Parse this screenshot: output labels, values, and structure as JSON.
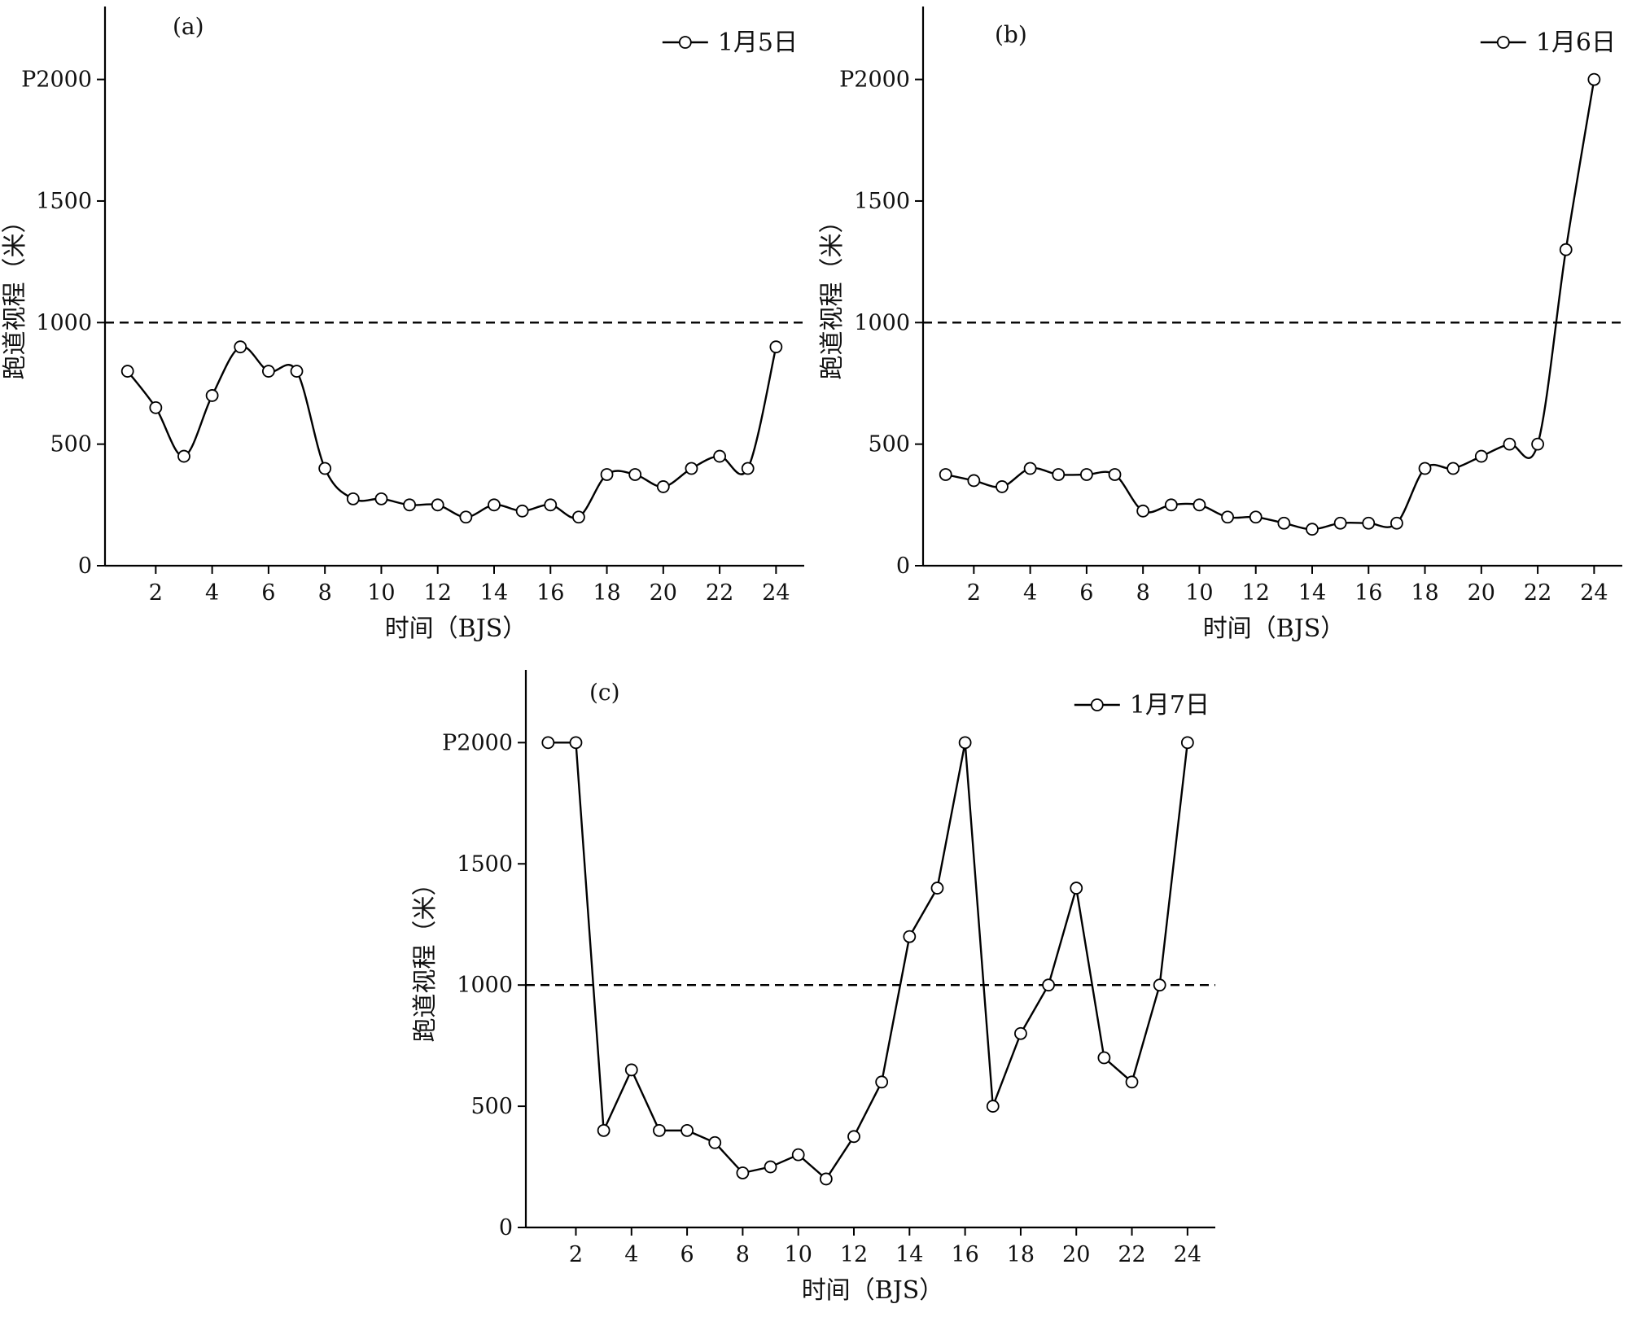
{
  "chart_data": [
    {
      "type": "line",
      "panel_label": "(a)",
      "legend": "1月5日",
      "xlabel": "时间（BJS）",
      "ylabel": "跑道视程（米）",
      "x_ticks": [
        2,
        4,
        6,
        8,
        10,
        12,
        14,
        16,
        18,
        20,
        22,
        24
      ],
      "y_ticks": [
        0,
        500,
        1000,
        1500,
        2000
      ],
      "y_tick_labels": [
        "0",
        "500",
        "1000",
        "1500",
        "P2000"
      ],
      "xlim": [
        0.2,
        25
      ],
      "ylim": [
        0,
        2300
      ],
      "reference_line": 1000,
      "smooth": true,
      "series": [
        {
          "name": "1月5日",
          "x": [
            1,
            2,
            3,
            4,
            5,
            6,
            7,
            8,
            9,
            10,
            11,
            12,
            13,
            14,
            15,
            16,
            17,
            18,
            19,
            20,
            21,
            22,
            23,
            24
          ],
          "values": [
            800,
            650,
            450,
            700,
            900,
            800,
            800,
            400,
            275,
            275,
            250,
            250,
            200,
            250,
            225,
            250,
            200,
            375,
            375,
            325,
            400,
            450,
            400,
            900
          ]
        }
      ]
    },
    {
      "type": "line",
      "panel_label": "(b)",
      "legend": "1月6日",
      "xlabel": "时间（BJS）",
      "ylabel": "跑道视程（米）",
      "x_ticks": [
        2,
        4,
        6,
        8,
        10,
        12,
        14,
        16,
        18,
        20,
        22,
        24
      ],
      "y_ticks": [
        0,
        500,
        1000,
        1500,
        2000
      ],
      "y_tick_labels": [
        "0",
        "500",
        "1000",
        "1500",
        "P2000"
      ],
      "xlim": [
        0.2,
        25
      ],
      "ylim": [
        0,
        2300
      ],
      "reference_line": 1000,
      "smooth": true,
      "series": [
        {
          "name": "1月6日",
          "x": [
            1,
            2,
            3,
            4,
            5,
            6,
            7,
            8,
            9,
            10,
            11,
            12,
            13,
            14,
            15,
            16,
            17,
            18,
            19,
            20,
            21,
            22,
            23,
            24
          ],
          "values": [
            375,
            350,
            325,
            400,
            375,
            375,
            375,
            225,
            250,
            250,
            200,
            200,
            175,
            150,
            175,
            175,
            175,
            400,
            400,
            450,
            500,
            500,
            1300,
            2000
          ]
        }
      ]
    },
    {
      "type": "line",
      "panel_label": "(c)",
      "legend": "1月7日",
      "xlabel": "时间（BJS）",
      "ylabel": "跑道视程（米）",
      "x_ticks": [
        2,
        4,
        6,
        8,
        10,
        12,
        14,
        16,
        18,
        20,
        22,
        24
      ],
      "y_ticks": [
        0,
        500,
        1000,
        1500,
        2000
      ],
      "y_tick_labels": [
        "0",
        "500",
        "1000",
        "1500",
        "P2000"
      ],
      "xlim": [
        0.2,
        25
      ],
      "ylim": [
        0,
        2300
      ],
      "reference_line": 1000,
      "smooth": false,
      "series": [
        {
          "name": "1月7日",
          "x": [
            1,
            2,
            3,
            4,
            5,
            6,
            7,
            8,
            9,
            10,
            11,
            12,
            13,
            14,
            15,
            16,
            17,
            18,
            19,
            20,
            21,
            22,
            23,
            24
          ],
          "values": [
            2000,
            2000,
            400,
            650,
            400,
            400,
            350,
            225,
            250,
            300,
            200,
            375,
            600,
            1200,
            1400,
            2000,
            500,
            800,
            1000,
            1400,
            700,
            600,
            1000,
            2000
          ]
        }
      ]
    }
  ]
}
